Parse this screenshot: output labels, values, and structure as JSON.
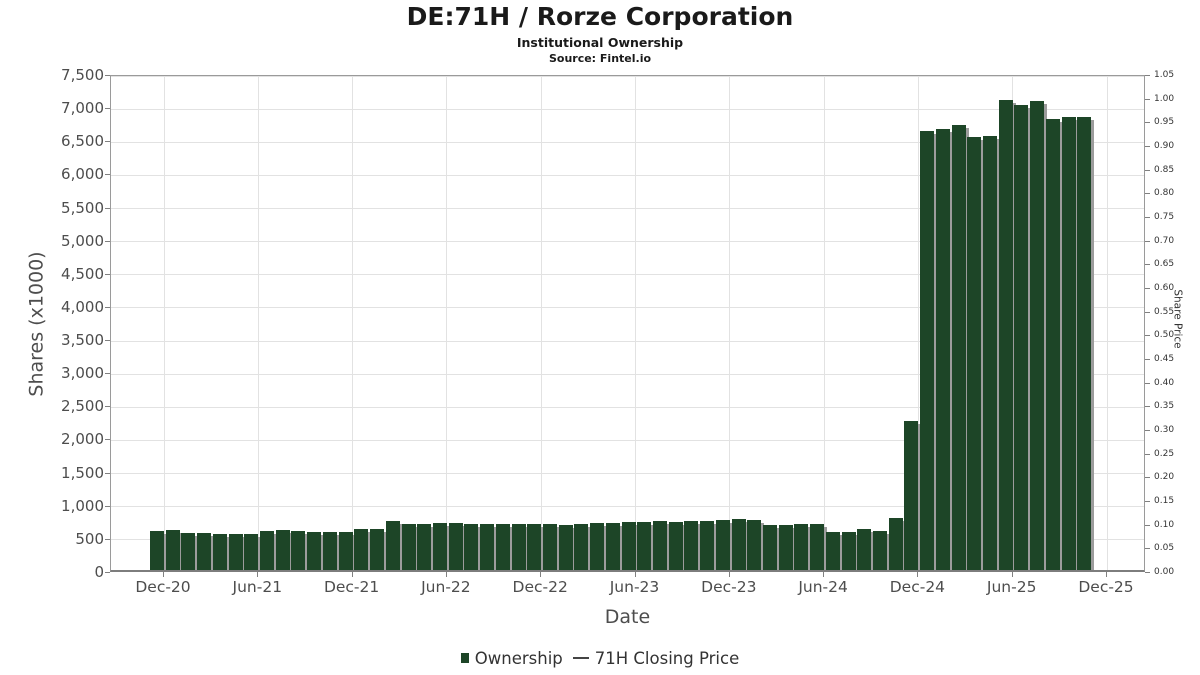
{
  "header": {
    "title": "DE:71H / Rorze Corporation",
    "subtitle": "Institutional Ownership",
    "source": "Source: Fintel.io"
  },
  "chart_data": {
    "type": "bar",
    "title": "DE:71H / Rorze Corporation",
    "subtitle": "Institutional Ownership",
    "source": "Source: Fintel.io",
    "xlabel": "Date",
    "ylabel_left": "Shares (x1000)",
    "ylabel_right": "Share Price",
    "grid": true,
    "legend_position": "bottom",
    "x_tick_labels": [
      "Dec-20",
      "Jun-21",
      "Dec-21",
      "Jun-22",
      "Dec-22",
      "Jun-23",
      "Dec-23",
      "Jun-24",
      "Dec-24",
      "Jun-25",
      "Dec-25"
    ],
    "y_left_range": [
      0,
      7500
    ],
    "y_left_ticks": [
      0,
      500,
      1000,
      1500,
      2000,
      2500,
      3000,
      3500,
      4000,
      4500,
      5000,
      5500,
      6000,
      6500,
      7000,
      7500
    ],
    "y_right_range": [
      0,
      1.05
    ],
    "y_right_ticks": [
      0,
      0.05,
      0.1,
      0.15,
      0.2,
      0.25,
      0.3,
      0.35,
      0.4,
      0.45,
      0.5,
      0.55,
      0.6,
      0.65,
      0.7,
      0.75,
      0.8,
      0.85,
      0.9,
      0.95,
      1.0,
      1.05
    ],
    "months": [
      "Dec-20",
      "Jan-21",
      "Feb-21",
      "Mar-21",
      "Apr-21",
      "May-21",
      "Jun-21",
      "Jul-21",
      "Aug-21",
      "Sep-21",
      "Oct-21",
      "Nov-21",
      "Dec-21",
      "Jan-22",
      "Feb-22",
      "Mar-22",
      "Apr-22",
      "May-22",
      "Jun-22",
      "Jul-22",
      "Aug-22",
      "Sep-22",
      "Oct-22",
      "Nov-22",
      "Dec-22",
      "Jan-23",
      "Feb-23",
      "Mar-23",
      "Apr-23",
      "May-23",
      "Jun-23",
      "Jul-23",
      "Aug-23",
      "Sep-23",
      "Oct-23",
      "Nov-23",
      "Dec-23",
      "Jan-24",
      "Feb-24",
      "Mar-24",
      "Apr-24",
      "May-24",
      "Jun-24",
      "Jul-24",
      "Aug-24",
      "Sep-24",
      "Oct-24",
      "Nov-24",
      "Dec-24",
      "Jan-25",
      "Feb-25",
      "Mar-25",
      "Apr-25",
      "May-25",
      "Jun-25",
      "Jul-25",
      "Aug-25",
      "Sep-25",
      "Oct-25",
      "Nov-25"
    ],
    "series": [
      {
        "name": "Ownership",
        "unit": "shares x1000",
        "values": [
          630,
          645,
          600,
          610,
          585,
          585,
          595,
          635,
          645,
          640,
          620,
          615,
          620,
          665,
          670,
          785,
          745,
          735,
          755,
          760,
          745,
          735,
          740,
          735,
          740,
          735,
          730,
          745,
          750,
          760,
          770,
          775,
          785,
          775,
          780,
          785,
          795,
          810,
          800,
          720,
          725,
          735,
          735,
          625,
          620,
          660,
          635,
          835,
          2290,
          6670,
          6695,
          6755,
          6585,
          6595,
          7135,
          7070,
          7120,
          6845,
          6885,
          6880
        ]
      }
    ],
    "legend": [
      {
        "label": "Ownership",
        "marker": "square",
        "color": "#1d4527"
      },
      {
        "label": "71H Closing Price",
        "marker": "line",
        "color": "#444444"
      }
    ]
  },
  "colors": {
    "bar": "#1d4527",
    "bar_shadow": "#9c9c9c",
    "price_line": "#444444",
    "grid": "#e2e2e2",
    "plot_border": "#9a9a9a",
    "tick": "#808080",
    "label_text": "#4d4d4d"
  }
}
